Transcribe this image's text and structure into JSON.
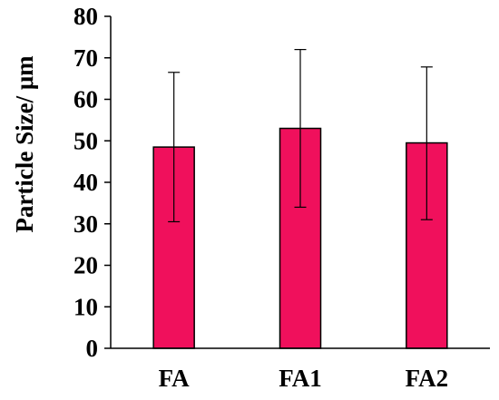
{
  "chart_data": {
    "type": "bar",
    "categories": [
      "FA",
      "FA1",
      "FA2"
    ],
    "values": [
      48.5,
      53.0,
      49.5
    ],
    "error_upper": [
      66.5,
      72.0,
      67.8
    ],
    "error_lower": [
      30.5,
      34.0,
      31.0
    ],
    "ylabel": "Particle Size/ μm",
    "xlabel": "",
    "ylim": [
      0,
      80
    ],
    "yticks": [
      0,
      10,
      20,
      30,
      40,
      50,
      60,
      70,
      80
    ],
    "grid": false,
    "legend": "none",
    "bar_color": "#F0105C"
  }
}
